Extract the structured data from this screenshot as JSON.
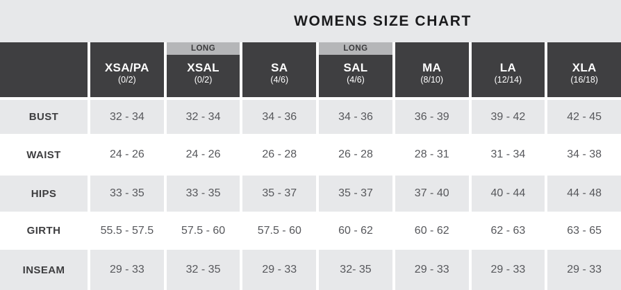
{
  "title": "WOMENS SIZE CHART",
  "colors": {
    "header_bg": "#3f3f41",
    "long_banner_bg": "#b5b6b8",
    "row_alt_bg": "#e7e8ea",
    "row_bg": "#ffffff",
    "header_text": "#ffffff",
    "body_text": "#56575b",
    "label_text": "#3d3d3f",
    "title_text": "#1b1b1d"
  },
  "chart_data": {
    "type": "table",
    "title": "WOMENS SIZE CHART",
    "columns": [
      {
        "name": "XSA/PA",
        "sub": "(0/2)",
        "long": false,
        "long_label": ""
      },
      {
        "name": "XSAL",
        "sub": "(0/2)",
        "long": true,
        "long_label": "LONG"
      },
      {
        "name": "SA",
        "sub": "(4/6)",
        "long": false,
        "long_label": ""
      },
      {
        "name": "SAL",
        "sub": "(4/6)",
        "long": true,
        "long_label": "LONG"
      },
      {
        "name": "MA",
        "sub": "(8/10)",
        "long": false,
        "long_label": ""
      },
      {
        "name": "LA",
        "sub": "(12/14)",
        "long": false,
        "long_label": ""
      },
      {
        "name": "XLA",
        "sub": "(16/18)",
        "long": false,
        "long_label": ""
      }
    ],
    "rows": [
      {
        "label": "BUST",
        "values": [
          "32 - 34",
          "32 - 34",
          "34 - 36",
          "34 - 36",
          "36 - 39",
          "39 - 42",
          "42 - 45"
        ]
      },
      {
        "label": "WAIST",
        "values": [
          "24 - 26",
          "24 - 26",
          "26 - 28",
          "26 - 28",
          "28 - 31",
          "31 - 34",
          "34 - 38"
        ]
      },
      {
        "label": "HIPS",
        "values": [
          "33 - 35",
          "33 - 35",
          "35 - 37",
          "35 - 37",
          "37 - 40",
          "40 - 44",
          "44 - 48"
        ]
      },
      {
        "label": "GIRTH",
        "values": [
          "55.5 - 57.5",
          "57.5 - 60",
          "57.5 - 60",
          "60 - 62",
          "60 - 62",
          "62 - 63",
          "63 - 65"
        ]
      },
      {
        "label": "INSEAM",
        "values": [
          "29 - 33",
          "32 - 35",
          "29 - 33",
          "32- 35",
          "29 - 33",
          "29 - 33",
          "29 - 33"
        ]
      }
    ]
  }
}
